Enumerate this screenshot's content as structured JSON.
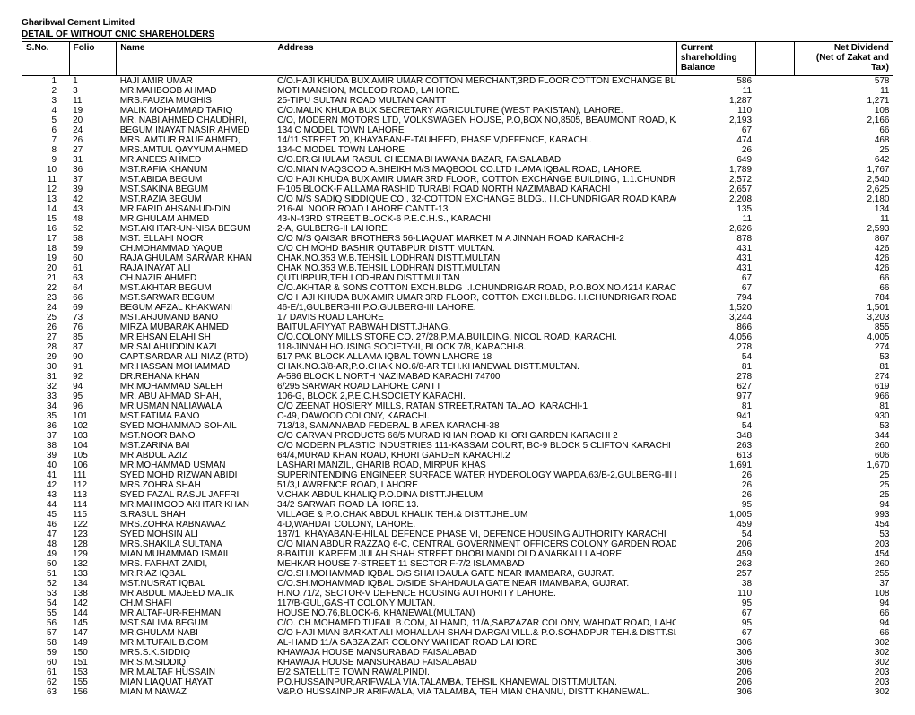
{
  "header": {
    "company": "Gharibwal Cement Limited",
    "report": "DETAIL OF WITHOUT CNIC SHAREHOLDERS"
  },
  "columns": {
    "sno": "S.No.",
    "folio": "Folio",
    "name": "Name",
    "address": "Address",
    "hold_l1": "Current",
    "hold_l2": "shareholding",
    "hold_l3": "Balance",
    "div_l1": "Net Dividend",
    "div_l2": "(Net of Zakat and",
    "div_l3": "Tax)"
  },
  "rows": [
    {
      "sno": "1",
      "folio": "1",
      "name": "HAJI AMIR UMAR",
      "addr": "C/O.HAJI KHUDA BUX AMIR UMAR COTTON MERCHANT,3RD FLOOR COTTON EXCHANGE BLDG, MCL",
      "hold": "586",
      "div": "578"
    },
    {
      "sno": "2",
      "folio": "3",
      "name": "MR.MAHBOOB AHMAD",
      "addr": "MOTI MANSION, MCLEOD ROAD, LAHORE.",
      "hold": "11",
      "div": "11"
    },
    {
      "sno": "3",
      "folio": "11",
      "name": "MRS.FAUZIA MUGHIS",
      "addr": "25-TIPU SULTAN ROAD MULTAN CANTT",
      "hold": "1,287",
      "div": "1,271"
    },
    {
      "sno": "4",
      "folio": "19",
      "name": "MALIK MOHAMMAD TARIQ",
      "addr": "C/O.MALIK KHUDA BUX SECRETARY AGRICULTURE (WEST PAKISTAN), LAHORE.",
      "hold": "110",
      "div": "108"
    },
    {
      "sno": "5",
      "folio": "20",
      "name": "MR. NABI AHMED CHAUDHRI,",
      "addr": "C/O, MODERN MOTORS LTD, VOLKSWAGEN HOUSE, P.O,BOX NO,8505, BEAUMONT ROAD, KARACHI.",
      "hold": "2,193",
      "div": "2,166"
    },
    {
      "sno": "6",
      "folio": "24",
      "name": "BEGUM INAYAT NASIR AHMED",
      "addr": "134 C MODEL TOWN LAHORE",
      "hold": "67",
      "div": "66"
    },
    {
      "sno": "7",
      "folio": "26",
      "name": "MRS. AMTUR RAUF AHMED,",
      "addr": "14/11 STREET 20, KHAYABAN-E-TAUHEED, PHASE V,DEFENCE, KARACHI.",
      "hold": "474",
      "div": "468"
    },
    {
      "sno": "8",
      "folio": "27",
      "name": "MRS.AMTUL QAYYUM AHMED",
      "addr": "134-C MODEL TOWN LAHORE",
      "hold": "26",
      "div": "25"
    },
    {
      "sno": "9",
      "folio": "31",
      "name": "MR.ANEES AHMED",
      "addr": "C/O.DR.GHULAM RASUL CHEEMA BHAWANA BAZAR, FAISALABAD",
      "hold": "649",
      "div": "642"
    },
    {
      "sno": "10",
      "folio": "36",
      "name": "MST.RAFIA KHANUM",
      "addr": "C/O.MIAN MAQSOOD A.SHEIKH M/S.MAQBOOL CO.LTD ILAMA IQBAL ROAD, LAHORE.",
      "hold": "1,789",
      "div": "1,767"
    },
    {
      "sno": "11",
      "folio": "37",
      "name": "MST.ABIDA BEGUM",
      "addr": "C/O HAJI KHUDA BUX AMIR UMAR 3RD FLOOR, COTTON EXCHANGE BUILDING, 1.1.CHUNDRIGAR RO",
      "hold": "2,572",
      "div": "2,540"
    },
    {
      "sno": "12",
      "folio": "39",
      "name": "MST.SAKINA BEGUM",
      "addr": "F-105 BLOCK-F ALLAMA RASHID TURABI ROAD NORTH NAZIMABAD KARACHI",
      "hold": "2,657",
      "div": "2,625"
    },
    {
      "sno": "13",
      "folio": "42",
      "name": "MST.RAZIA BEGUM",
      "addr": "C/O M/S SADIQ SIDDIQUE CO., 32-COTTON EXCHANGE BLDG., I.I.CHUNDRIGAR ROAD KARACHI.",
      "hold": "2,208",
      "div": "2,180"
    },
    {
      "sno": "14",
      "folio": "43",
      "name": "MR.FARID AHSAN-UD-DIN",
      "addr": "216-AL NOOR ROAD LAHORE CANTT-13",
      "hold": "135",
      "div": "134"
    },
    {
      "sno": "15",
      "folio": "48",
      "name": "MR.GHULAM AHMED",
      "addr": "43-N-43RD STREET BLOCK-6 P.E.C.H.S., KARACHI.",
      "hold": "11",
      "div": "11"
    },
    {
      "sno": "16",
      "folio": "52",
      "name": "MST.AKHTAR-UN-NISA BEGUM",
      "addr": "2-A, GULBERG-II LAHORE",
      "hold": "2,626",
      "div": "2,593"
    },
    {
      "sno": "17",
      "folio": "58",
      "name": "MST. ELLAHI NOOR",
      "addr": "C/O M/S QAISAR BROTHERS 56-LIAQUAT MARKET M A JINNAH ROAD KARACHI-2",
      "hold": "878",
      "div": "867"
    },
    {
      "sno": "18",
      "folio": "59",
      "name": "CH.MOHAMMAD YAQUB",
      "addr": "C/O CH MOHD BASHIR QUTABPUR DISTT MULTAN.",
      "hold": "431",
      "div": "426"
    },
    {
      "sno": "19",
      "folio": "60",
      "name": "RAJA GHULAM SARWAR KHAN",
      "addr": "CHAK.NO.353 W.B.TEHSIL LODHRAN DISTT.MULTAN",
      "hold": "431",
      "div": "426"
    },
    {
      "sno": "20",
      "folio": "61",
      "name": "RAJA INAYAT ALI",
      "addr": "CHAK NO.353 W.B.TEHSIL LODHRAN DISTT.MULTAN",
      "hold": "431",
      "div": "426"
    },
    {
      "sno": "21",
      "folio": "63",
      "name": "CH.NAZIR AHMED",
      "addr": "QUTUBPUR,TEH.LODHRAN DISTT.MULTAN",
      "hold": "67",
      "div": "66"
    },
    {
      "sno": "22",
      "folio": "64",
      "name": "MST.AKHTAR BEGUM",
      "addr": "C/O.AKHTAR & SONS COTTON EXCH.BLDG I.I.CHUNDRIGAR ROAD, P.O.BOX.NO.4214 KARACHI.2",
      "hold": "67",
      "div": "66"
    },
    {
      "sno": "23",
      "folio": "66",
      "name": "MST.SARWAR BEGUM",
      "addr": "C/O HAJI KHUDA BUX AMIR UMAR 3RD FLOOR, COTTON EXCH.BLDG. I.I.CHUNDRIGAR ROAD P.O.BO",
      "hold": "794",
      "div": "784"
    },
    {
      "sno": "24",
      "folio": "69",
      "name": "BEGUM AFZAL KHAKWANI",
      "addr": "46-E/1,GULBERG-III P.O.GULBERG-III LAHORE.",
      "hold": "1,520",
      "div": "1,501"
    },
    {
      "sno": "25",
      "folio": "73",
      "name": "MST.ARJUMAND BANO",
      "addr": "17 DAVIS ROAD LAHORE",
      "hold": "3,244",
      "div": "3,203"
    },
    {
      "sno": "26",
      "folio": "76",
      "name": "MIRZA MUBARAK AHMED",
      "addr": "BAITUL AFIYYAT RABWAH DISTT.JHANG.",
      "hold": "866",
      "div": "855"
    },
    {
      "sno": "27",
      "folio": "85",
      "name": "MR.EHSAN ELAHI SH",
      "addr": "C/O.COLONY MILLS STORE CO. 27/28,P.M.A.BUILDING, NICOL ROAD, KARACHI.",
      "hold": "4,056",
      "div": "4,005"
    },
    {
      "sno": "28",
      "folio": "87",
      "name": "MR.SALAHUDDIN KAZI",
      "addr": "118-JINNAH HOUSING SOCIETY-II, BLOCK 7/8, KARACHI-8.",
      "hold": "278",
      "div": "274"
    },
    {
      "sno": "29",
      "folio": "90",
      "name": "CAPT.SARDAR ALI NIAZ (RTD)",
      "addr": "517 PAK BLOCK ALLAMA IQBAL TOWN LAHORE 18",
      "hold": "54",
      "div": "53"
    },
    {
      "sno": "30",
      "folio": "91",
      "name": "MR.HASSAN MOHAMMAD",
      "addr": "CHAK.NO.3/8-AR,P.O.CHAK NO.6/8-AR TEH.KHANEWAL DISTT.MULTAN.",
      "hold": "81",
      "div": "81"
    },
    {
      "sno": "31",
      "folio": "92",
      "name": "DR.REHANA KHAN",
      "addr": "A-586 BLOCK L NORTH NAZIMABAD KARACHI 74700",
      "hold": "278",
      "div": "274"
    },
    {
      "sno": "32",
      "folio": "94",
      "name": "MR.MOHAMMAD SALEH",
      "addr": "6/295 SARWAR ROAD LAHORE CANTT",
      "hold": "627",
      "div": "619"
    },
    {
      "sno": "33",
      "folio": "95",
      "name": "MR. ABU AHMAD SHAH,",
      "addr": "106-G, BLOCK 2,P.E.C.H.SOCIETY KARACHI.",
      "hold": "977",
      "div": "966"
    },
    {
      "sno": "34",
      "folio": "96",
      "name": "MR.USMAN NALIAWALA",
      "addr": "C/O ZEENAT HOSIERY MILLS, RATAN STREET,RATAN TALAO, KARACHI-1",
      "hold": "81",
      "div": "81"
    },
    {
      "sno": "35",
      "folio": "101",
      "name": "MST.FATIMA BANO",
      "addr": "C-49, DAWOOD COLONY, KARACHI.",
      "hold": "941",
      "div": "930"
    },
    {
      "sno": "36",
      "folio": "102",
      "name": "SYED MOHAMMAD SOHAIL",
      "addr": "713/18, SAMANABAD FEDERAL B AREA KARACHI-38",
      "hold": "54",
      "div": "53"
    },
    {
      "sno": "37",
      "folio": "103",
      "name": "MST.NOOR BANO",
      "addr": "C/O CARVAN PRODUCTS 66/5 MURAD KHAN ROAD KHORI GARDEN KARACHI 2",
      "hold": "348",
      "div": "344"
    },
    {
      "sno": "38",
      "folio": "104",
      "name": "MST.ZARINA BAI",
      "addr": "C/O MODERN PLASTIC INDUSTRIES 111-KASSAM COURT, BC-9 BLOCK 5 CLIFTON KARACHI",
      "hold": "263",
      "div": "260"
    },
    {
      "sno": "39",
      "folio": "105",
      "name": "MR.ABDUL AZIZ",
      "addr": "64/4,MURAD KHAN ROAD, KHORI GARDEN KARACHI.2",
      "hold": "613",
      "div": "606"
    },
    {
      "sno": "40",
      "folio": "106",
      "name": "MR.MOHAMMAD USMAN",
      "addr": "LASHARI MANZIL, GHARIB ROAD, MIRPUR KHAS",
      "hold": "1,691",
      "div": "1,670"
    },
    {
      "sno": "41",
      "folio": "111",
      "name": "SYED MOHD RIZWAN ABIDI",
      "addr": "SUPERINTENDING ENGINEER SURFACE WATER HYDEROLOGY WAPDA,63/B-2,GULBERG-III LAHORE",
      "hold": "26",
      "div": "25"
    },
    {
      "sno": "42",
      "folio": "112",
      "name": "MRS.ZOHRA SHAH",
      "addr": "51/3,LAWRENCE ROAD, LAHORE",
      "hold": "26",
      "div": "25"
    },
    {
      "sno": "43",
      "folio": "113",
      "name": "SYED FAZAL RASUL JAFFRI",
      "addr": "V.CHAK ABDUL KHALIQ P.O.DINA DISTT.JHELUM",
      "hold": "26",
      "div": "25"
    },
    {
      "sno": "44",
      "folio": "114",
      "name": "MR.MAHMOOD AKHTAR KHAN",
      "addr": "34/2 SARWAR ROAD LAHORE 13.",
      "hold": "95",
      "div": "94"
    },
    {
      "sno": "45",
      "folio": "115",
      "name": "S.RASUL SHAH",
      "addr": "VILLAGE & P.O.CHAK ABDUL KHALIK TEH.& DISTT.JHELUM",
      "hold": "1,005",
      "div": "993"
    },
    {
      "sno": "46",
      "folio": "122",
      "name": "MRS.ZOHRA RABNAWAZ",
      "addr": "4-D,WAHDAT COLONY, LAHORE.",
      "hold": "459",
      "div": "454"
    },
    {
      "sno": "47",
      "folio": "123",
      "name": "SYED MOHSIN ALI",
      "addr": "187/1, KHAYABAN-E-HILAL DEFENCE PHASE VI, DEFENCE HOUSING AUTHORITY KARACHI",
      "hold": "54",
      "div": "53"
    },
    {
      "sno": "48",
      "folio": "128",
      "name": "MRS.SHAKILA SULTANA",
      "addr": "C/O MIAN ABDUR RAZZAQ 6-C, CENTRAL GOVERNMENT OFFICERS COLONY GARDEN ROAD KARACI",
      "hold": "206",
      "div": "203"
    },
    {
      "sno": "49",
      "folio": "129",
      "name": "MIAN MUHAMMAD ISMAIL",
      "addr": "8-BAITUL KAREEM JULAH SHAH STREET DHOBI MANDI OLD ANARKALI LAHORE",
      "hold": "459",
      "div": "454"
    },
    {
      "sno": "50",
      "folio": "132",
      "name": "MRS. FARHAT ZAIDI,",
      "addr": "MEHKAR HOUSE 7-STREET 11 SECTOR F-7/2 ISLAMABAD",
      "hold": "263",
      "div": "260"
    },
    {
      "sno": "51",
      "folio": "133",
      "name": "MR.RIAZ IQBAL",
      "addr": "C/O.SH.MOHAMMAD IQBAL O/S SHAHDAULA GATE NEAR IMAMBARA, GUJRAT.",
      "hold": "257",
      "div": "255"
    },
    {
      "sno": "52",
      "folio": "134",
      "name": "MST.NUSRAT IQBAL",
      "addr": "C/O.SH.MOHAMMAD IQBAL O/SIDE SHAHDAULA GATE NEAR IMAMBARA, GUJRAT.",
      "hold": "38",
      "div": "37"
    },
    {
      "sno": "53",
      "folio": "138",
      "name": "MR.ABDUL MAJEED MALIK",
      "addr": "H.NO.71/2, SECTOR-V DEFENCE HOUSING AUTHORITY LAHORE.",
      "hold": "110",
      "div": "108"
    },
    {
      "sno": "54",
      "folio": "142",
      "name": "CH.M.SHAFI",
      "addr": "117/B-GUL,GASHT COLONY MULTAN.",
      "hold": "95",
      "div": "94"
    },
    {
      "sno": "55",
      "folio": "144",
      "name": "MR.ALTAF-UR-REHMAN",
      "addr": "HOUSE NO.76,BLOCK-6, KHANEWAL(MULTAN)",
      "hold": "67",
      "div": "66"
    },
    {
      "sno": "56",
      "folio": "145",
      "name": "MST.SALIMA BEGUM",
      "addr": "C/O. CH.MOHAMED TUFAIL B.COM, ALHAMD, 11/A,SABZAZAR COLONY, WAHDAT ROAD, LAHORE-16,",
      "hold": "95",
      "div": "94"
    },
    {
      "sno": "57",
      "folio": "147",
      "name": "MR.GHULAM NABI",
      "addr": "C/O HAJI MIAN BARKAT ALI MOHALLAH SHAH DARGAI VILL.& P.O.SOHADPUR TEH.& DISTT.SIALKOT.",
      "hold": "67",
      "div": "66"
    },
    {
      "sno": "58",
      "folio": "149",
      "name": "MR.M.TUFAIL B.COM",
      "addr": "AL-HAMD 11/A SABZA ZAR COLONY WAHDAT ROAD LAHORE",
      "hold": "306",
      "div": "302"
    },
    {
      "sno": "59",
      "folio": "150",
      "name": "MRS.S.K.SIDDIQ",
      "addr": "KHAWAJA HOUSE MANSURABAD FAISALABAD",
      "hold": "306",
      "div": "302"
    },
    {
      "sno": "60",
      "folio": "151",
      "name": "MR.S.M.SIDDIQ",
      "addr": "KHAWAJA HOUSE MANSURABAD FAISALABAD",
      "hold": "306",
      "div": "302"
    },
    {
      "sno": "61",
      "folio": "153",
      "name": "MR.M.ALTAF HUSSAIN",
      "addr": "E/2 SATELLITE TOWN RAWALPINDI.",
      "hold": "206",
      "div": "203"
    },
    {
      "sno": "62",
      "folio": "155",
      "name": "MIAN LIAQUAT HAYAT",
      "addr": "P.O.HUSSAINPUR,ARIFWALA VIA.TALAMBA, TEHSIL KHANEWAL DISTT.MULTAN.",
      "hold": "206",
      "div": "203"
    },
    {
      "sno": "63",
      "folio": "156",
      "name": "MIAN M NAWAZ",
      "addr": "V&P.O HUSSAINPUR ARIFWALA, VIA TALAMBA, TEH MIAN CHANNU, DISTT KHANEWAL.",
      "hold": "306",
      "div": "302"
    }
  ]
}
